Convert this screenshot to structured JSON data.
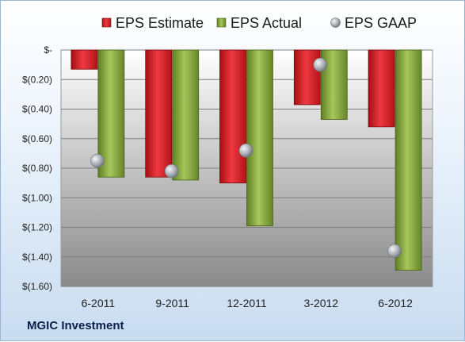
{
  "company": "MGIC Investment",
  "chart_data": {
    "type": "bar",
    "categories": [
      "6-2011",
      "9-2011",
      "12-2011",
      "3-2012",
      "6-2012"
    ],
    "series": [
      {
        "name": "EPS Estimate",
        "kind": "bar",
        "color": "#d81c24",
        "values": [
          -0.13,
          -0.86,
          -0.9,
          -0.37,
          -0.52
        ]
      },
      {
        "name": "EPS Actual",
        "kind": "bar",
        "color": "#82a63e",
        "values": [
          -0.86,
          -0.88,
          -1.19,
          -0.47,
          -1.49
        ]
      },
      {
        "name": "EPS GAAP",
        "kind": "marker",
        "color": "#a8aeb4",
        "values": [
          -0.75,
          -0.82,
          -0.68,
          -0.1,
          -1.36
        ]
      }
    ],
    "yticks": [
      0,
      -0.2,
      -0.4,
      -0.6,
      -0.8,
      -1.0,
      -1.2,
      -1.4,
      -1.6
    ],
    "ytick_labels": [
      "$-",
      "$(0.20)",
      "$(0.40)",
      "$(0.60)",
      "$(0.80)",
      "$(1.00)",
      "$(1.20)",
      "$(1.40)",
      "$(1.60)"
    ],
    "ylim": [
      -1.6,
      0
    ],
    "grid": true,
    "legend": "top"
  }
}
